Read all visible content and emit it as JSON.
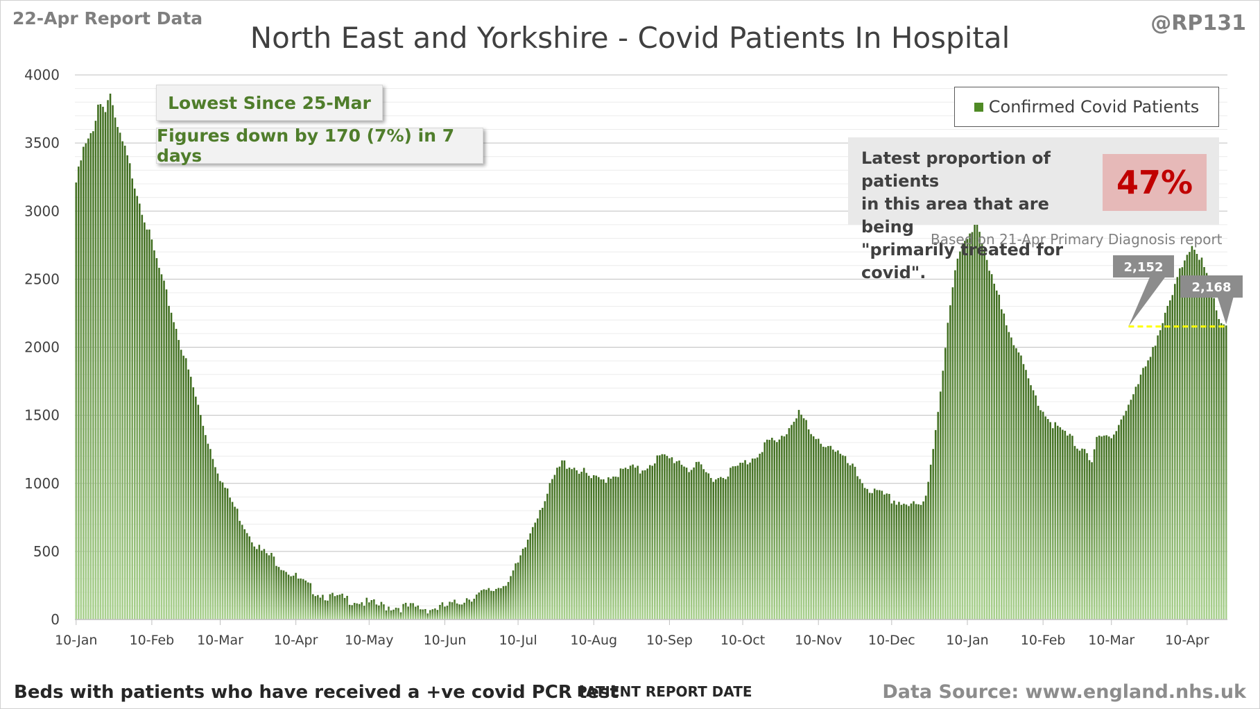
{
  "header": {
    "report_date": "22-Apr Report Data",
    "title": "North East and Yorkshire - Covid Patients In Hospital",
    "handle": "@RP131"
  },
  "callouts": {
    "lowest": "Lowest Since 25-Mar",
    "change": "Figures down by 170 (7%) in 7 days"
  },
  "legend": {
    "label": "Confirmed Covid Patients"
  },
  "proportion": {
    "text_lines": [
      "Latest proportion of patients",
      "in this area that are being",
      "\"primarily treated for covid\"."
    ],
    "value": "47%",
    "note": "Based on 21-Apr Primary Diagnosis report"
  },
  "footer": {
    "left": "Beds with patients who have received a +ve covid PCR test",
    "axis_title": "PATIENT REPORT DATE",
    "source": "Data Source: www.england.nhs.uk"
  },
  "colors": {
    "bar_top": "#3d6b1c",
    "bar_bottom": "#a9d18e",
    "reference_line": "#ffff00",
    "accent_red": "#c00000"
  },
  "chart_data": {
    "type": "bar",
    "ylim": [
      0,
      4000
    ],
    "yticks": [
      0,
      500,
      1000,
      1500,
      2000,
      2500,
      3000,
      3500,
      4000
    ],
    "grid": true,
    "legend_position": "top-right",
    "xtick_labels": [
      "10-Jan",
      "10-Feb",
      "10-Mar",
      "10-Apr",
      "10-May",
      "10-Jun",
      "10-Jul",
      "10-Aug",
      "10-Sep",
      "10-Oct",
      "10-Nov",
      "10-Dec",
      "10-Jan",
      "10-Feb",
      "10-Mar",
      "10-Apr"
    ],
    "xtick_day_index": [
      0,
      31,
      59,
      90,
      120,
      151,
      181,
      212,
      243,
      273,
      304,
      334,
      365,
      396,
      424,
      455
    ],
    "series_anchors": [
      [
        0,
        3210
      ],
      [
        3,
        3450
      ],
      [
        7,
        3580
      ],
      [
        9,
        3800
      ],
      [
        12,
        3760
      ],
      [
        14,
        3870
      ],
      [
        16,
        3650
      ],
      [
        20,
        3450
      ],
      [
        24,
        3200
      ],
      [
        28,
        2950
      ],
      [
        32,
        2700
      ],
      [
        36,
        2450
      ],
      [
        40,
        2200
      ],
      [
        44,
        1950
      ],
      [
        48,
        1700
      ],
      [
        52,
        1430
      ],
      [
        56,
        1200
      ],
      [
        60,
        1000
      ],
      [
        64,
        860
      ],
      [
        68,
        720
      ],
      [
        72,
        600
      ],
      [
        76,
        500
      ],
      [
        80,
        460
      ],
      [
        84,
        400
      ],
      [
        88,
        340
      ],
      [
        92,
        280
      ],
      [
        96,
        230
      ],
      [
        100,
        190
      ],
      [
        105,
        160
      ],
      [
        110,
        150
      ],
      [
        115,
        140
      ],
      [
        120,
        115
      ],
      [
        125,
        100
      ],
      [
        130,
        95
      ],
      [
        135,
        90
      ],
      [
        140,
        85
      ],
      [
        145,
        80
      ],
      [
        150,
        90
      ],
      [
        155,
        110
      ],
      [
        160,
        160
      ],
      [
        165,
        180
      ],
      [
        170,
        210
      ],
      [
        175,
        260
      ],
      [
        178,
        320
      ],
      [
        181,
        400
      ],
      [
        184,
        530
      ],
      [
        187,
        690
      ],
      [
        190,
        820
      ],
      [
        193,
        920
      ],
      [
        196,
        1050
      ],
      [
        199,
        1150
      ],
      [
        203,
        1130
      ],
      [
        207,
        1090
      ],
      [
        211,
        1030
      ],
      [
        215,
        1020
      ],
      [
        219,
        1060
      ],
      [
        223,
        1080
      ],
      [
        227,
        1110
      ],
      [
        231,
        1090
      ],
      [
        235,
        1150
      ],
      [
        239,
        1190
      ],
      [
        243,
        1180
      ],
      [
        247,
        1170
      ],
      [
        251,
        1110
      ],
      [
        255,
        1120
      ],
      [
        259,
        1060
      ],
      [
        263,
        1040
      ],
      [
        267,
        1080
      ],
      [
        271,
        1120
      ],
      [
        275,
        1160
      ],
      [
        279,
        1220
      ],
      [
        283,
        1310
      ],
      [
        287,
        1290
      ],
      [
        291,
        1380
      ],
      [
        294,
        1470
      ],
      [
        296,
        1540
      ],
      [
        299,
        1430
      ],
      [
        302,
        1310
      ],
      [
        306,
        1300
      ],
      [
        310,
        1270
      ],
      [
        314,
        1180
      ],
      [
        318,
        1110
      ],
      [
        322,
        1010
      ],
      [
        326,
        940
      ],
      [
        330,
        910
      ],
      [
        334,
        880
      ],
      [
        338,
        860
      ],
      [
        342,
        840
      ],
      [
        346,
        820
      ],
      [
        348,
        900
      ],
      [
        350,
        1150
      ],
      [
        352,
        1400
      ],
      [
        354,
        1700
      ],
      [
        356,
        2000
      ],
      [
        358,
        2300
      ],
      [
        360,
        2550
      ],
      [
        363,
        2750
      ],
      [
        365,
        2830
      ],
      [
        367,
        2880
      ],
      [
        369,
        2950
      ],
      [
        371,
        2750
      ],
      [
        374,
        2550
      ],
      [
        378,
        2350
      ],
      [
        382,
        2150
      ],
      [
        386,
        1950
      ],
      [
        390,
        1750
      ],
      [
        394,
        1600
      ],
      [
        398,
        1480
      ],
      [
        402,
        1400
      ],
      [
        406,
        1350
      ],
      [
        410,
        1280
      ],
      [
        414,
        1250
      ],
      [
        416,
        1120
      ],
      [
        418,
        1320
      ],
      [
        422,
        1340
      ],
      [
        426,
        1400
      ],
      [
        430,
        1540
      ],
      [
        434,
        1680
      ],
      [
        438,
        1870
      ],
      [
        442,
        2050
      ],
      [
        446,
        2220
      ],
      [
        449,
        2380
      ],
      [
        452,
        2550
      ],
      [
        455,
        2700
      ],
      [
        457,
        2760
      ],
      [
        459,
        2720
      ],
      [
        461,
        2620
      ],
      [
        463,
        2520
      ],
      [
        465,
        2380
      ],
      [
        467,
        2270
      ],
      [
        469,
        2190
      ],
      [
        471,
        2168
      ]
    ],
    "last_day_index": 471,
    "annotations": [
      {
        "label": "2,152",
        "value": 2152
      },
      {
        "label": "2,168",
        "value": 2168
      }
    ]
  }
}
